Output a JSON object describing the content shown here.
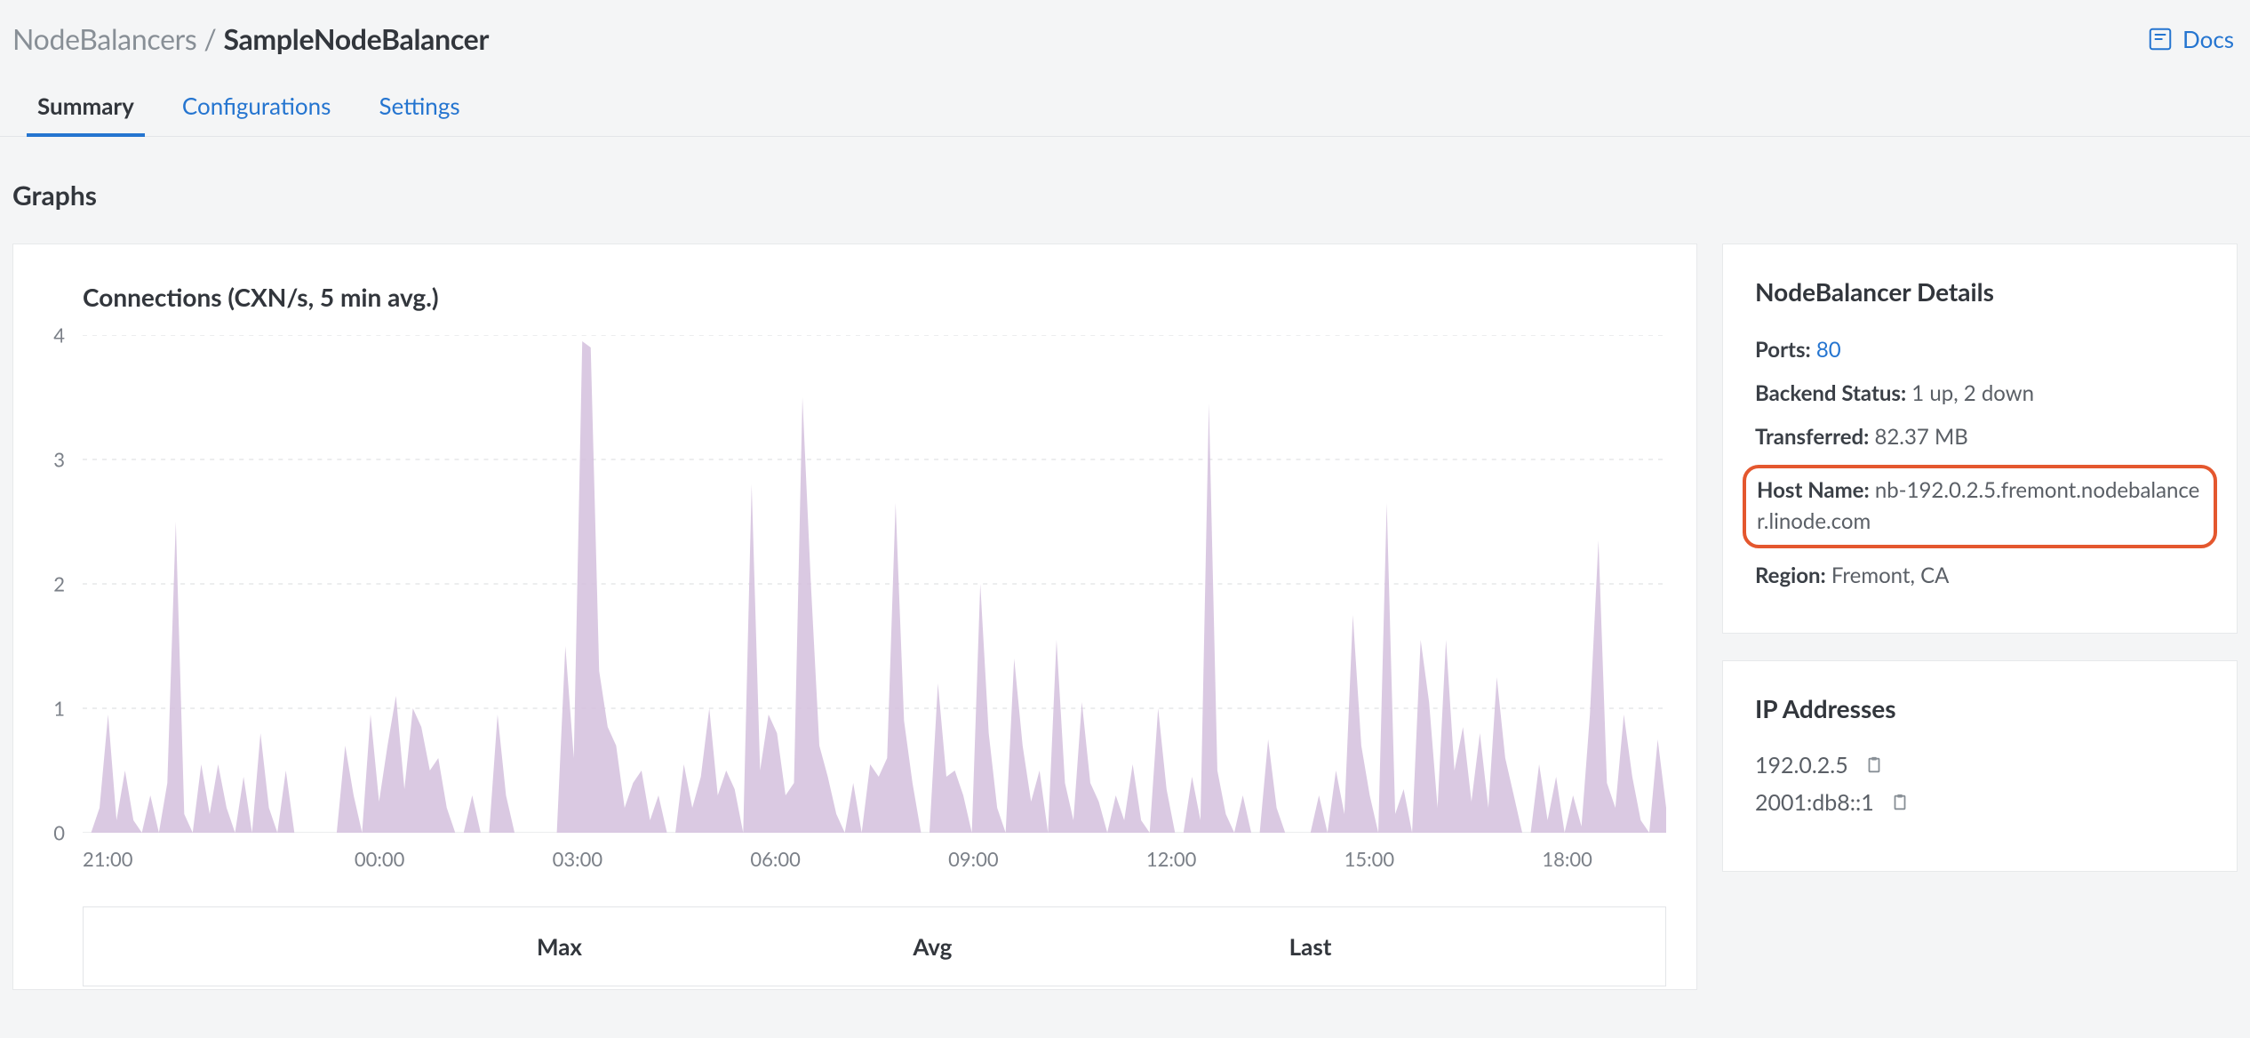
{
  "breadcrumb": {
    "parent": "NodeBalancers",
    "sep": " / ",
    "current": "SampleNodeBalancer"
  },
  "docs": {
    "label": "Docs"
  },
  "tabs": [
    {
      "label": "Summary",
      "active": true
    },
    {
      "label": "Configurations",
      "active": false
    },
    {
      "label": "Settings",
      "active": false
    }
  ],
  "graphs_heading": "Graphs",
  "chart": {
    "title": "Connections (CXN/s, 5 min avg.)",
    "type": "area",
    "fill_color": "#d4bfdd",
    "fill_opacity": 0.85,
    "grid_color": "#d9dbde",
    "background_color": "#ffffff",
    "axis_label_color": "#7b8088",
    "axis_label_fontsize": 22,
    "ylim": [
      0,
      4
    ],
    "yticks": [
      0,
      1,
      2,
      3,
      4
    ],
    "xticks": [
      "21:00",
      "00:00",
      "03:00",
      "06:00",
      "09:00",
      "12:00",
      "15:00",
      "18:00"
    ],
    "data": [
      0,
      0,
      0.2,
      0.95,
      0.1,
      0.5,
      0.1,
      0,
      0.3,
      0,
      0.4,
      2.5,
      0.15,
      0,
      0.55,
      0.15,
      0.55,
      0.2,
      0,
      0.45,
      0,
      0.8,
      0.2,
      0,
      0.5,
      0,
      0,
      0,
      0,
      0,
      0,
      0.7,
      0.3,
      0,
      0.95,
      0.25,
      0.7,
      1.1,
      0.35,
      1.0,
      0.85,
      0.5,
      0.6,
      0.2,
      0,
      0,
      0.3,
      0,
      0,
      0.95,
      0.3,
      0,
      0,
      0,
      0,
      0,
      0,
      1.5,
      0.6,
      3.95,
      3.9,
      1.3,
      0.85,
      0.7,
      0.2,
      0.4,
      0.5,
      0.1,
      0.3,
      0,
      0,
      0.55,
      0.2,
      0.45,
      1.0,
      0.3,
      0.5,
      0.35,
      0,
      2.8,
      0.5,
      0.95,
      0.8,
      0.3,
      0.4,
      3.5,
      2.0,
      0.7,
      0.45,
      0.15,
      0,
      0.4,
      0,
      0.55,
      0.45,
      0.6,
      2.65,
      0.9,
      0.4,
      0,
      0,
      1.2,
      0.45,
      0.5,
      0.3,
      0,
      2.0,
      0.8,
      0.2,
      0,
      1.4,
      0.7,
      0.25,
      0.5,
      0,
      1.55,
      0.4,
      0.1,
      1.05,
      0.4,
      0.25,
      0,
      0.3,
      0.1,
      0.55,
      0.1,
      0,
      1.0,
      0.35,
      0,
      0,
      0.45,
      0.1,
      3.45,
      0.5,
      0.15,
      0,
      0.3,
      0,
      0,
      0.75,
      0.2,
      0,
      0,
      0,
      0,
      0.3,
      0,
      0.5,
      0.15,
      1.75,
      0.7,
      0.3,
      0,
      2.65,
      0.15,
      0.35,
      0,
      1.55,
      1.05,
      0.2,
      1.55,
      0.5,
      0.85,
      0.25,
      0.8,
      0.2,
      1.25,
      0.6,
      0.3,
      0,
      0,
      0.55,
      0.1,
      0.45,
      0,
      0.3,
      0.05,
      0.95,
      2.35,
      0.4,
      0.2,
      0.95,
      0.45,
      0.1,
      0,
      0.75,
      0.2
    ],
    "stats": {
      "max_label": "Max",
      "avg_label": "Avg",
      "last_label": "Last"
    }
  },
  "details": {
    "title": "NodeBalancer Details",
    "ports_label": "Ports:",
    "ports_value": "80",
    "backend_label": "Backend Status:",
    "backend_value": "1 up, 2 down",
    "transferred_label": "Transferred:",
    "transferred_value": "82.37 MB",
    "host_label": "Host Name:",
    "host_value": "nb-192.0.2.5.fremont.nodebalancer.linode.com",
    "region_label": "Region:",
    "region_value": "Fremont, CA"
  },
  "ips": {
    "title": "IP Addresses",
    "list": [
      "192.0.2.5",
      "2001:db8::1"
    ]
  }
}
